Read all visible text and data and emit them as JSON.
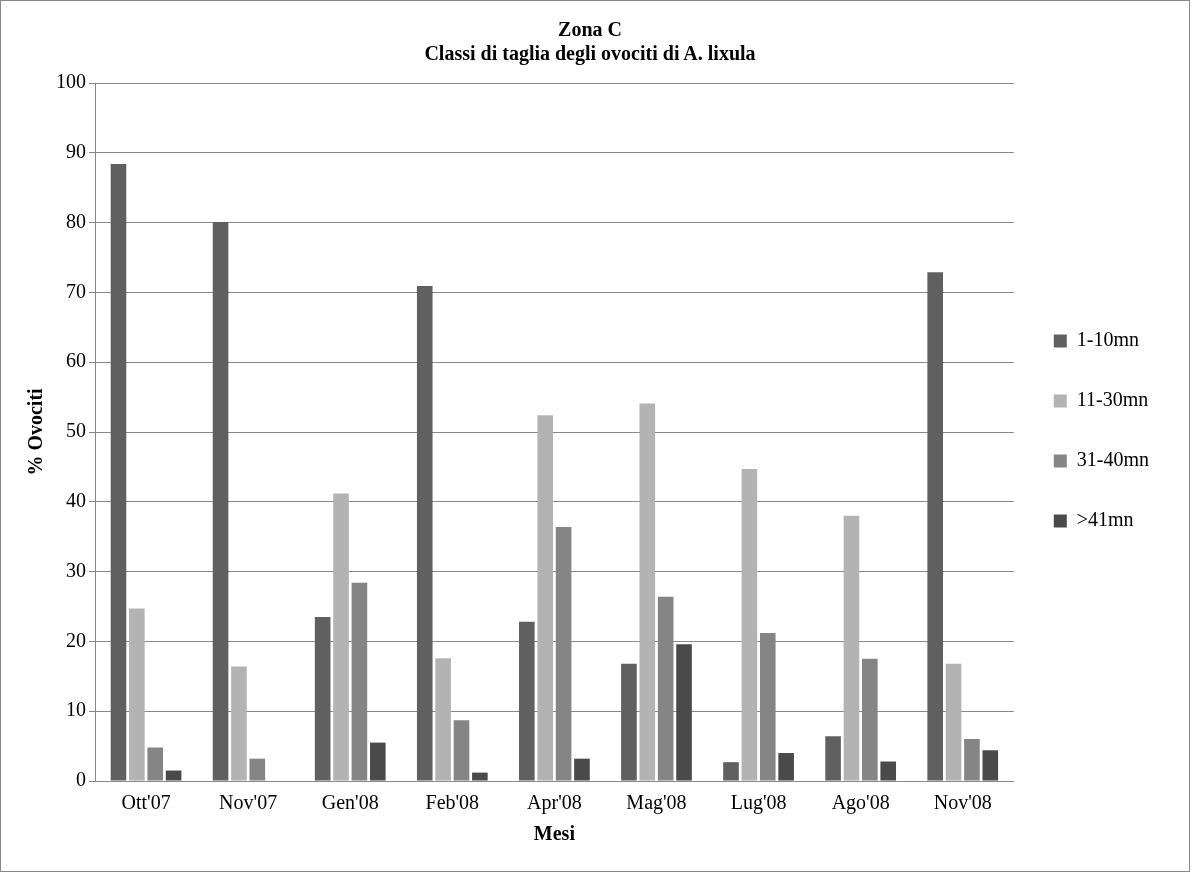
{
  "chart_data": {
    "type": "bar",
    "title": "Zona C",
    "subtitle": "Classi di taglia degli ovociti di A. lixula",
    "xlabel": "Mesi",
    "ylabel": "% Ovociti",
    "categories": [
      "Ott'07",
      "Nov'07",
      "Gen'08",
      "Feb'08",
      "Apr'08",
      "Mag'08",
      "Lug'08",
      "Ago'08",
      "Nov'08"
    ],
    "series": [
      {
        "name": "1-10mn",
        "color": "#606060",
        "values": [
          88.4,
          80.1,
          23.5,
          70.9,
          22.8,
          16.8,
          2.7,
          6.4,
          72.9
        ]
      },
      {
        "name": "11-30mn",
        "color": "#b3b3b3",
        "values": [
          24.7,
          16.4,
          41.2,
          17.6,
          52.4,
          54.1,
          44.7,
          38.0,
          16.8
        ]
      },
      {
        "name": "31-40mn",
        "color": "#858585",
        "values": [
          4.8,
          3.2,
          28.4,
          8.7,
          36.4,
          26.4,
          21.2,
          17.5,
          6.0
        ]
      },
      {
        "name": ">41mn",
        "color": "#4a4a4a",
        "values": [
          1.5,
          0,
          5.5,
          1.2,
          3.2,
          19.6,
          4.0,
          2.8,
          4.4
        ]
      }
    ],
    "ylim": [
      0,
      100
    ],
    "yticks": [
      0,
      10,
      20,
      30,
      40,
      50,
      60,
      70,
      80,
      90,
      100
    ],
    "grid": "y",
    "legend": "right"
  }
}
